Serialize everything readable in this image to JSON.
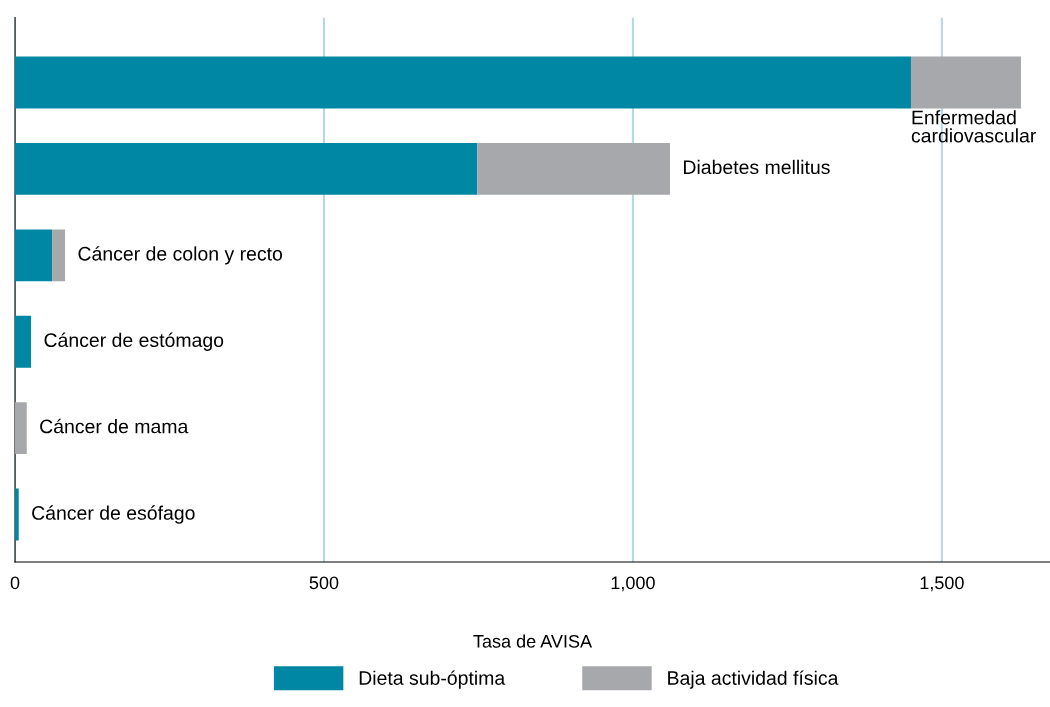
{
  "chart_data": {
    "type": "bar",
    "orientation": "horizontal",
    "stacked": true,
    "xlabel": "Tasa de AVISA",
    "categories": [
      "Enfermedad cardiovascular",
      "Diabetes mellitus",
      "Cáncer de colon y recto",
      "Cáncer de estómago",
      "Cáncer de mama",
      "Cáncer de esófago"
    ],
    "series": [
      {
        "name": "Dieta sub-óptima",
        "color": "#0087a3",
        "values": [
          1450,
          748,
          60,
          26,
          0,
          6
        ]
      },
      {
        "name": "Baja actividad física",
        "color": "#a7a8ab",
        "values": [
          178,
          312,
          21,
          0,
          19,
          0
        ]
      }
    ],
    "xlim": [
      0,
      1675
    ],
    "xticks": [
      0,
      500,
      {
        "value": 1000,
        "label": "1,000"
      },
      {
        "value": 1500,
        "label": "1,500"
      }
    ],
    "grid": "x",
    "legend": "bottom",
    "tick_labels": "x"
  }
}
